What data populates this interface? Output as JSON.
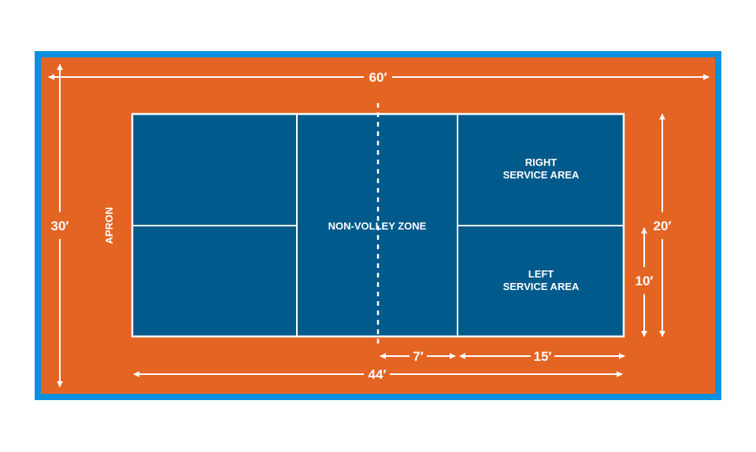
{
  "colors": {
    "border": "#0a90de",
    "apron": "#e46424",
    "court": "#005a8c",
    "lines": "#ffffff"
  },
  "dimensions": {
    "total_length": "60′",
    "total_width": "30′",
    "court_length": "44′",
    "court_width": "20′",
    "service_width": "10′",
    "non_volley_depth": "7′",
    "service_depth": "15′"
  },
  "labels": {
    "apron": "APRON",
    "non_volley_zone": "NON-VOLLEY ZONE",
    "right_service_line1": "RIGHT",
    "right_service_line2": "SERVICE AREA",
    "left_service_line1": "LEFT",
    "left_service_line2": "SERVICE AREA"
  }
}
